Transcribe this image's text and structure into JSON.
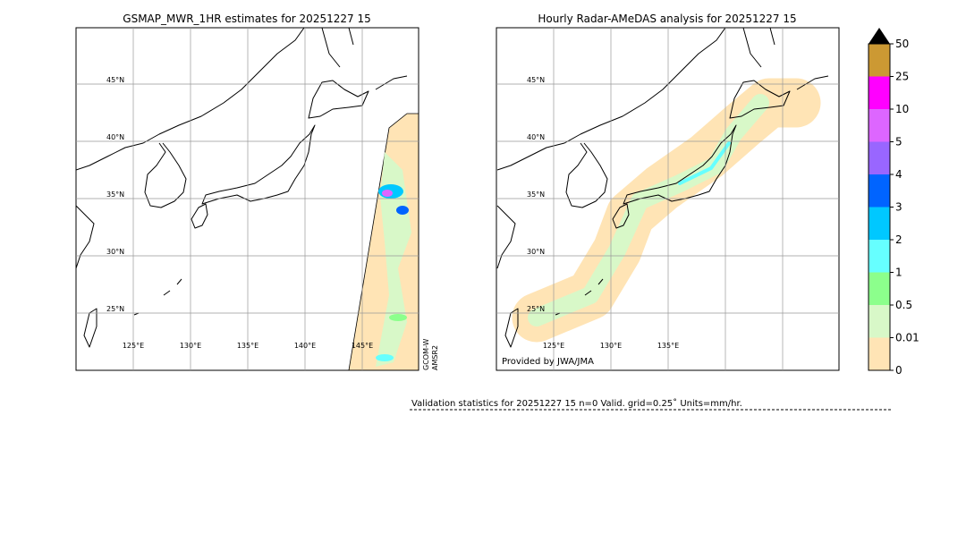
{
  "left_map": {
    "title": "GSMAP_MWR_1HR estimates for 20251227 15",
    "lat_labels": [
      "45°N",
      "40°N",
      "35°N",
      "30°N",
      "25°N"
    ],
    "lon_labels": [
      "125°E",
      "130°E",
      "135°E",
      "140°E",
      "145°E"
    ],
    "satellite_label": [
      "GCOM-W",
      "AMSR2"
    ]
  },
  "right_map": {
    "title": "Hourly Radar-AMeDAS analysis for 20251227 15",
    "lat_labels": [
      "45°N",
      "40°N",
      "35°N",
      "30°N",
      "25°N"
    ],
    "lon_labels": [
      "125°E",
      "130°E",
      "135°E"
    ],
    "credit": "Provided by JWA/JMA"
  },
  "colorbar": {
    "ticks": [
      0,
      0.01,
      0.5,
      1,
      2,
      3,
      4,
      5,
      10,
      25,
      50
    ],
    "colors": [
      "#ffe4b5",
      "#d8f8c8",
      "#8cff8c",
      "#66ffff",
      "#00c8ff",
      "#0064ff",
      "#9966ff",
      "#dd66ff",
      "#ff00ff",
      "#cc9933"
    ],
    "extend_color": "#000000"
  },
  "validation": "Validation statistics for 20251227 15  n=0 Valid. grid=0.25˚ Units=mm/hr."
}
